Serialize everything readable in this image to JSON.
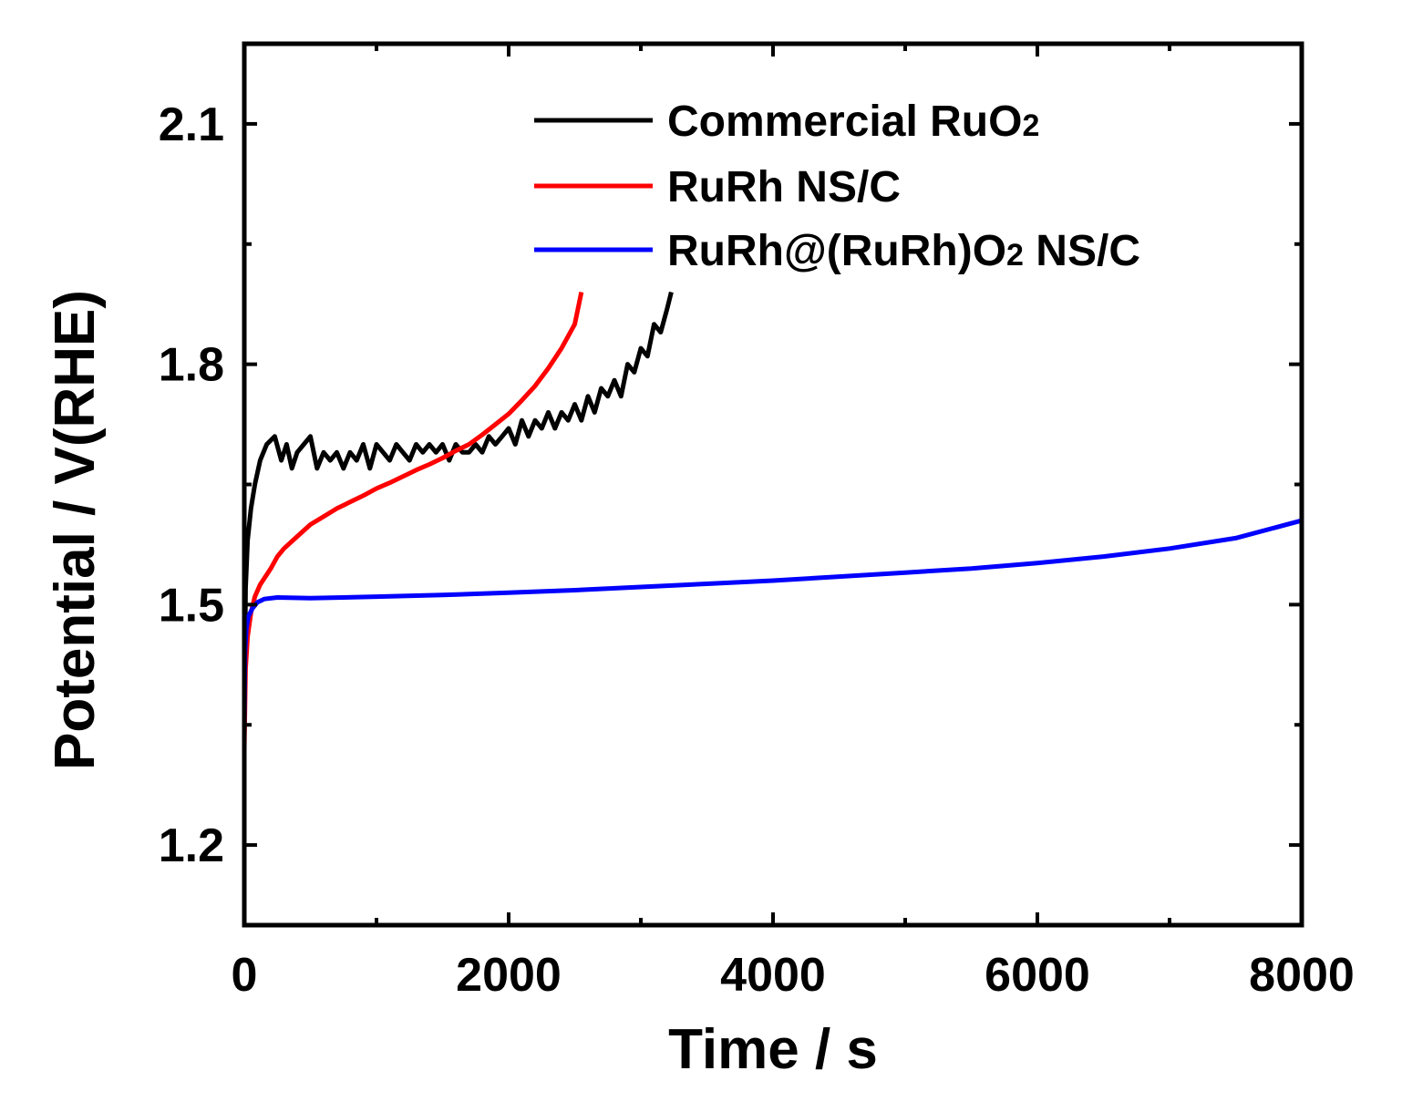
{
  "chart_data": {
    "type": "line",
    "title": "",
    "xlabel": "Time / s",
    "ylabel": "Potential / V(RHE)",
    "xlim": [
      0,
      8000
    ],
    "ylim": [
      1.1,
      2.2
    ],
    "x_ticks": [
      0,
      2000,
      4000,
      6000,
      8000
    ],
    "x_tick_labels": [
      "0",
      "2000",
      "4000",
      "6000",
      "8000"
    ],
    "x_minor_ticks": [
      1000,
      3000,
      5000,
      7000
    ],
    "y_ticks": [
      1.2,
      1.5,
      1.8,
      2.1
    ],
    "y_tick_labels": [
      "1.2",
      "1.5",
      "1.8",
      "2.1"
    ],
    "y_minor_ticks": [
      1.35,
      1.65,
      1.95
    ],
    "grid": false,
    "legend_position": "top-right",
    "series": [
      {
        "name": "Commercial RuO",
        "name_sub": "2",
        "color": "#000000",
        "x": [
          0,
          10,
          25,
          50,
          80,
          120,
          170,
          230,
          280,
          320,
          360,
          400,
          450,
          500,
          550,
          600,
          650,
          700,
          750,
          800,
          850,
          900,
          950,
          1000,
          1050,
          1100,
          1150,
          1200,
          1250,
          1300,
          1350,
          1400,
          1450,
          1500,
          1550,
          1600,
          1650,
          1700,
          1750,
          1800,
          1850,
          1900,
          1950,
          2000,
          2050,
          2100,
          2150,
          2200,
          2250,
          2300,
          2350,
          2400,
          2450,
          2500,
          2550,
          2600,
          2650,
          2700,
          2750,
          2800,
          2850,
          2900,
          2950,
          3000,
          3050,
          3100,
          3150,
          3200,
          3230
        ],
        "y": [
          1.34,
          1.52,
          1.58,
          1.62,
          1.65,
          1.68,
          1.7,
          1.71,
          1.68,
          1.7,
          1.67,
          1.69,
          1.7,
          1.71,
          1.67,
          1.69,
          1.68,
          1.69,
          1.67,
          1.69,
          1.68,
          1.7,
          1.67,
          1.7,
          1.69,
          1.68,
          1.7,
          1.69,
          1.68,
          1.7,
          1.69,
          1.7,
          1.69,
          1.7,
          1.68,
          1.7,
          1.69,
          1.69,
          1.7,
          1.69,
          1.71,
          1.7,
          1.71,
          1.72,
          1.7,
          1.73,
          1.71,
          1.73,
          1.72,
          1.74,
          1.72,
          1.74,
          1.73,
          1.75,
          1.73,
          1.76,
          1.74,
          1.77,
          1.76,
          1.78,
          1.76,
          1.8,
          1.79,
          1.82,
          1.81,
          1.85,
          1.84,
          1.87,
          1.89
        ]
      },
      {
        "name": "RuRh NS/C",
        "color": "#ff0000",
        "x": [
          0,
          10,
          25,
          50,
          80,
          120,
          160,
          200,
          250,
          300,
          400,
          500,
          600,
          700,
          800,
          900,
          1000,
          1100,
          1200,
          1300,
          1400,
          1500,
          1600,
          1700,
          1800,
          1900,
          2000,
          2100,
          2200,
          2300,
          2400,
          2500,
          2550
        ],
        "y": [
          1.32,
          1.42,
          1.46,
          1.49,
          1.51,
          1.525,
          1.535,
          1.545,
          1.56,
          1.57,
          1.585,
          1.6,
          1.61,
          1.62,
          1.628,
          1.636,
          1.645,
          1.652,
          1.66,
          1.668,
          1.675,
          1.683,
          1.692,
          1.7,
          1.712,
          1.725,
          1.738,
          1.755,
          1.773,
          1.795,
          1.82,
          1.85,
          1.89
        ]
      },
      {
        "name": "RuRh@(RuRh)O",
        "name_sub": "2",
        "name_suffix": " NS/C",
        "color": "#0000ff",
        "x": [
          0,
          5,
          15,
          30,
          60,
          100,
          150,
          250,
          500,
          1000,
          1500,
          2000,
          2500,
          3000,
          3500,
          4000,
          4500,
          5000,
          5500,
          6000,
          6500,
          7000,
          7500,
          8000
        ],
        "y": [
          1.34,
          1.44,
          1.47,
          1.485,
          1.495,
          1.503,
          1.507,
          1.509,
          1.508,
          1.51,
          1.512,
          1.515,
          1.518,
          1.522,
          1.526,
          1.53,
          1.535,
          1.54,
          1.545,
          1.552,
          1.56,
          1.57,
          1.583,
          1.605
        ]
      }
    ]
  }
}
